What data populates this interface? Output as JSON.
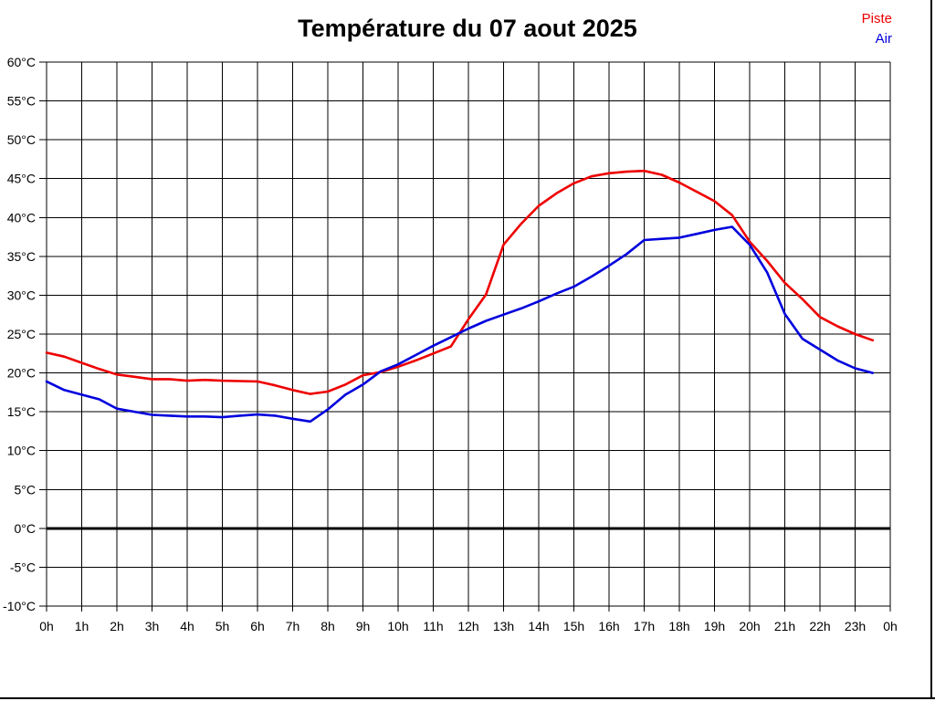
{
  "title": "Température du 07 aout 2025",
  "legend": {
    "items": [
      {
        "label": "Piste"
      },
      {
        "label": "Air"
      }
    ]
  },
  "chart_data": {
    "type": "line",
    "title": "Température du 07 aout 2025",
    "xlabel": "",
    "ylabel": "",
    "xlim": [
      0,
      24
    ],
    "ylim": [
      -10,
      60
    ],
    "y_tick_step": 5,
    "y_tick_suffix": "°C",
    "x_tick_labels": [
      "0h",
      "1h",
      "2h",
      "3h",
      "4h",
      "5h",
      "6h",
      "7h",
      "8h",
      "9h",
      "10h",
      "11h",
      "12h",
      "13h",
      "14h",
      "15h",
      "16h",
      "17h",
      "18h",
      "19h",
      "20h",
      "21h",
      "22h",
      "23h",
      "0h"
    ],
    "grid": true,
    "zero_line_bold": true,
    "legend_position": "top-right",
    "x": [
      0,
      0.5,
      1,
      1.5,
      2,
      2.5,
      3,
      3.5,
      4,
      4.5,
      5,
      5.5,
      6,
      6.5,
      7,
      7.5,
      8,
      8.5,
      9,
      9.5,
      10,
      10.5,
      11,
      11.5,
      12,
      12.5,
      13,
      13.5,
      14,
      14.5,
      15,
      15.5,
      16,
      16.5,
      17,
      17.5,
      18,
      18.5,
      19,
      19.5,
      20,
      20.5,
      21,
      21.5,
      22,
      22.5,
      23,
      23.5
    ],
    "series": [
      {
        "name": "Piste",
        "color": "#ee0000",
        "values": [
          22.6,
          22.1,
          21.3,
          20.5,
          19.8,
          19.5,
          19.2,
          19.2,
          19.0,
          19.1,
          19.0,
          18.95,
          18.9,
          18.4,
          17.8,
          17.3,
          17.6,
          18.5,
          19.7,
          20.1,
          20.8,
          21.6,
          22.5,
          23.4,
          26.9,
          30.1,
          36.5,
          39.2,
          41.5,
          43.1,
          44.4,
          45.3,
          45.7,
          45.9,
          46.0,
          45.5,
          44.5,
          43.3,
          42.1,
          40.3,
          36.9,
          34.4,
          31.6,
          29.5,
          27.2,
          26.0,
          25.0,
          24.2
        ]
      },
      {
        "name": "Air",
        "color": "#0000dd",
        "values": [
          18.9,
          17.8,
          17.2,
          16.6,
          15.4,
          15.0,
          14.6,
          14.5,
          14.4,
          14.4,
          14.3,
          14.5,
          14.65,
          14.5,
          14.1,
          13.75,
          15.3,
          17.2,
          18.5,
          20.2,
          21.1,
          22.3,
          23.5,
          24.6,
          25.7,
          26.7,
          27.5,
          28.3,
          29.2,
          30.2,
          31.1,
          32.4,
          33.8,
          35.3,
          37.1,
          37.25,
          37.4,
          37.9,
          38.4,
          38.8,
          36.5,
          32.9,
          27.6,
          24.4,
          23.0,
          21.6,
          20.6,
          20.0
        ]
      }
    ]
  }
}
